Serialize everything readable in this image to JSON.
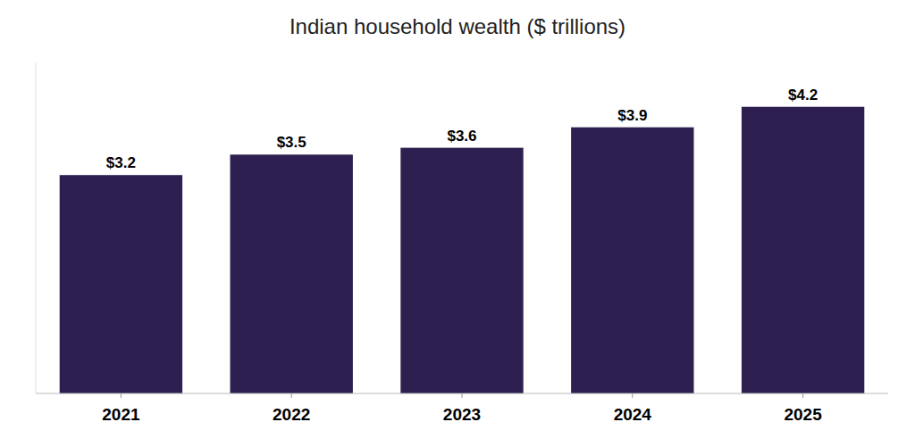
{
  "chart_data": {
    "type": "bar",
    "title": "Indian household wealth ($ trillions)",
    "categories": [
      "2021",
      "2022",
      "2023",
      "2024",
      "2025"
    ],
    "values": [
      3.2,
      3.5,
      3.6,
      3.9,
      4.2
    ],
    "value_labels": [
      "$3.2",
      "$3.5",
      "$3.6",
      "$3.9",
      "$4.2"
    ],
    "data_labels": true,
    "color": "#2d2050",
    "ylim": [
      0,
      4.85
    ],
    "grid": false,
    "tick_labels": "x"
  }
}
